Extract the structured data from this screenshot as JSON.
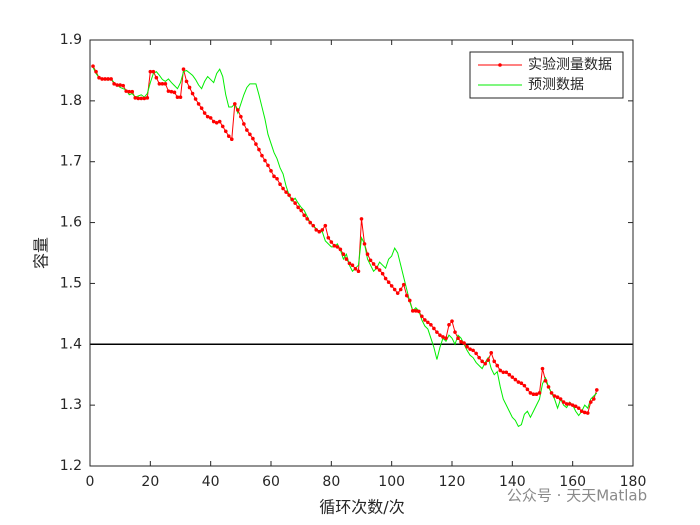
{
  "chart_data": {
    "type": "line",
    "xlabel": "循环次数/次",
    "ylabel": "容量",
    "xlim": [
      0,
      180
    ],
    "xticks": [
      0,
      20,
      40,
      60,
      80,
      100,
      120,
      140,
      160,
      180
    ],
    "ylim": [
      1.2,
      1.9
    ],
    "yticks": [
      1.2,
      1.3,
      1.4,
      1.5,
      1.6,
      1.7,
      1.8,
      1.9
    ],
    "legend": "northeast",
    "grid": false,
    "hlines": [
      {
        "y": 1.4,
        "color": "#000000"
      }
    ],
    "watermark": "公众号 · 天天Matlab",
    "x": [
      1,
      2,
      3,
      4,
      5,
      6,
      7,
      8,
      9,
      10,
      11,
      12,
      13,
      14,
      15,
      16,
      17,
      18,
      19,
      20,
      21,
      22,
      23,
      24,
      25,
      26,
      27,
      28,
      29,
      30,
      31,
      32,
      33,
      34,
      35,
      36,
      37,
      38,
      39,
      40,
      41,
      42,
      43,
      44,
      45,
      46,
      47,
      48,
      49,
      50,
      51,
      52,
      53,
      54,
      55,
      56,
      57,
      58,
      59,
      60,
      61,
      62,
      63,
      64,
      65,
      66,
      67,
      68,
      69,
      70,
      71,
      72,
      73,
      74,
      75,
      76,
      77,
      78,
      79,
      80,
      81,
      82,
      83,
      84,
      85,
      86,
      87,
      88,
      89,
      90,
      91,
      92,
      93,
      94,
      95,
      96,
      97,
      98,
      99,
      100,
      101,
      102,
      103,
      104,
      105,
      106,
      107,
      108,
      109,
      110,
      111,
      112,
      113,
      114,
      115,
      116,
      117,
      118,
      119,
      120,
      121,
      122,
      123,
      124,
      125,
      126,
      127,
      128,
      129,
      130,
      131,
      132,
      133,
      134,
      135,
      136,
      137,
      138,
      139,
      140,
      141,
      142,
      143,
      144,
      145,
      146,
      147,
      148,
      149,
      150,
      151,
      152,
      153,
      154,
      155,
      156,
      157,
      158,
      159,
      160,
      161,
      162,
      163,
      164,
      165,
      166,
      167,
      168
    ],
    "series": [
      {
        "name": "实验测量数据",
        "color": "#ff0000",
        "marker": true,
        "values": [
          1.857,
          1.848,
          1.838,
          1.836,
          1.836,
          1.836,
          1.836,
          1.828,
          1.826,
          1.826,
          1.825,
          1.816,
          1.815,
          1.815,
          1.805,
          1.804,
          1.804,
          1.804,
          1.805,
          1.848,
          1.848,
          1.838,
          1.828,
          1.828,
          1.828,
          1.816,
          1.815,
          1.814,
          1.806,
          1.806,
          1.852,
          1.832,
          1.822,
          1.812,
          1.803,
          1.795,
          1.788,
          1.78,
          1.774,
          1.772,
          1.766,
          1.764,
          1.766,
          1.758,
          1.75,
          1.742,
          1.737,
          1.795,
          1.785,
          1.774,
          1.762,
          1.752,
          1.745,
          1.738,
          1.729,
          1.72,
          1.71,
          1.702,
          1.694,
          1.685,
          1.676,
          1.672,
          1.663,
          1.656,
          1.65,
          1.645,
          1.638,
          1.632,
          1.625,
          1.62,
          1.612,
          1.606,
          1.6,
          1.595,
          1.588,
          1.585,
          1.588,
          1.595,
          1.575,
          1.568,
          1.562,
          1.56,
          1.556,
          1.548,
          1.54,
          1.533,
          1.53,
          1.524,
          1.52,
          1.606,
          1.565,
          1.548,
          1.538,
          1.532,
          1.526,
          1.522,
          1.516,
          1.508,
          1.502,
          1.496,
          1.49,
          1.484,
          1.49,
          1.498,
          1.48,
          1.472,
          1.455,
          1.455,
          1.454,
          1.446,
          1.44,
          1.436,
          1.432,
          1.426,
          1.42,
          1.415,
          1.412,
          1.41,
          1.432,
          1.438,
          1.42,
          1.41,
          1.404,
          1.402,
          1.396,
          1.392,
          1.39,
          1.385,
          1.378,
          1.372,
          1.368,
          1.374,
          1.386,
          1.372,
          1.365,
          1.357,
          1.354,
          1.354,
          1.35,
          1.346,
          1.342,
          1.338,
          1.336,
          1.332,
          1.326,
          1.32,
          1.318,
          1.318,
          1.32,
          1.36,
          1.34,
          1.33,
          1.32,
          1.315,
          1.313,
          1.31,
          1.305,
          1.302,
          1.302,
          1.3,
          1.298,
          1.295,
          1.29,
          1.288,
          1.287,
          1.305,
          1.31,
          1.325
        ]
      },
      {
        "name": "预测数据",
        "color": "#00ee00",
        "marker": false,
        "values": [
          1.855,
          1.845,
          1.838,
          1.836,
          1.835,
          1.834,
          1.836,
          1.83,
          1.826,
          1.822,
          1.82,
          1.818,
          1.81,
          1.812,
          1.806,
          1.808,
          1.81,
          1.806,
          1.812,
          1.83,
          1.845,
          1.848,
          1.842,
          1.835,
          1.832,
          1.836,
          1.83,
          1.825,
          1.82,
          1.83,
          1.848,
          1.85,
          1.846,
          1.842,
          1.835,
          1.826,
          1.82,
          1.832,
          1.84,
          1.835,
          1.83,
          1.845,
          1.852,
          1.84,
          1.81,
          1.79,
          1.79,
          1.795,
          1.78,
          1.795,
          1.81,
          1.822,
          1.828,
          1.828,
          1.828,
          1.81,
          1.79,
          1.77,
          1.745,
          1.73,
          1.715,
          1.705,
          1.69,
          1.68,
          1.66,
          1.645,
          1.635,
          1.64,
          1.632,
          1.625,
          1.62,
          1.61,
          1.6,
          1.595,
          1.59,
          1.585,
          1.585,
          1.57,
          1.565,
          1.56,
          1.56,
          1.565,
          1.555,
          1.54,
          1.548,
          1.53,
          1.52,
          1.525,
          1.53,
          1.575,
          1.565,
          1.54,
          1.53,
          1.52,
          1.525,
          1.535,
          1.53,
          1.525,
          1.54,
          1.545,
          1.558,
          1.55,
          1.53,
          1.51,
          1.49,
          1.47,
          1.455,
          1.46,
          1.455,
          1.44,
          1.43,
          1.425,
          1.41,
          1.395,
          1.375,
          1.395,
          1.41,
          1.405,
          1.415,
          1.41,
          1.4,
          1.415,
          1.41,
          1.4,
          1.39,
          1.382,
          1.378,
          1.37,
          1.365,
          1.36,
          1.37,
          1.378,
          1.36,
          1.35,
          1.355,
          1.33,
          1.31,
          1.3,
          1.29,
          1.28,
          1.275,
          1.265,
          1.268,
          1.285,
          1.29,
          1.28,
          1.29,
          1.3,
          1.31,
          1.335,
          1.345,
          1.33,
          1.32,
          1.31,
          1.295,
          1.31,
          1.3,
          1.296,
          1.305,
          1.3,
          1.29,
          1.283,
          1.29,
          1.3,
          1.295,
          1.31,
          1.315,
          1.32
        ]
      }
    ]
  }
}
